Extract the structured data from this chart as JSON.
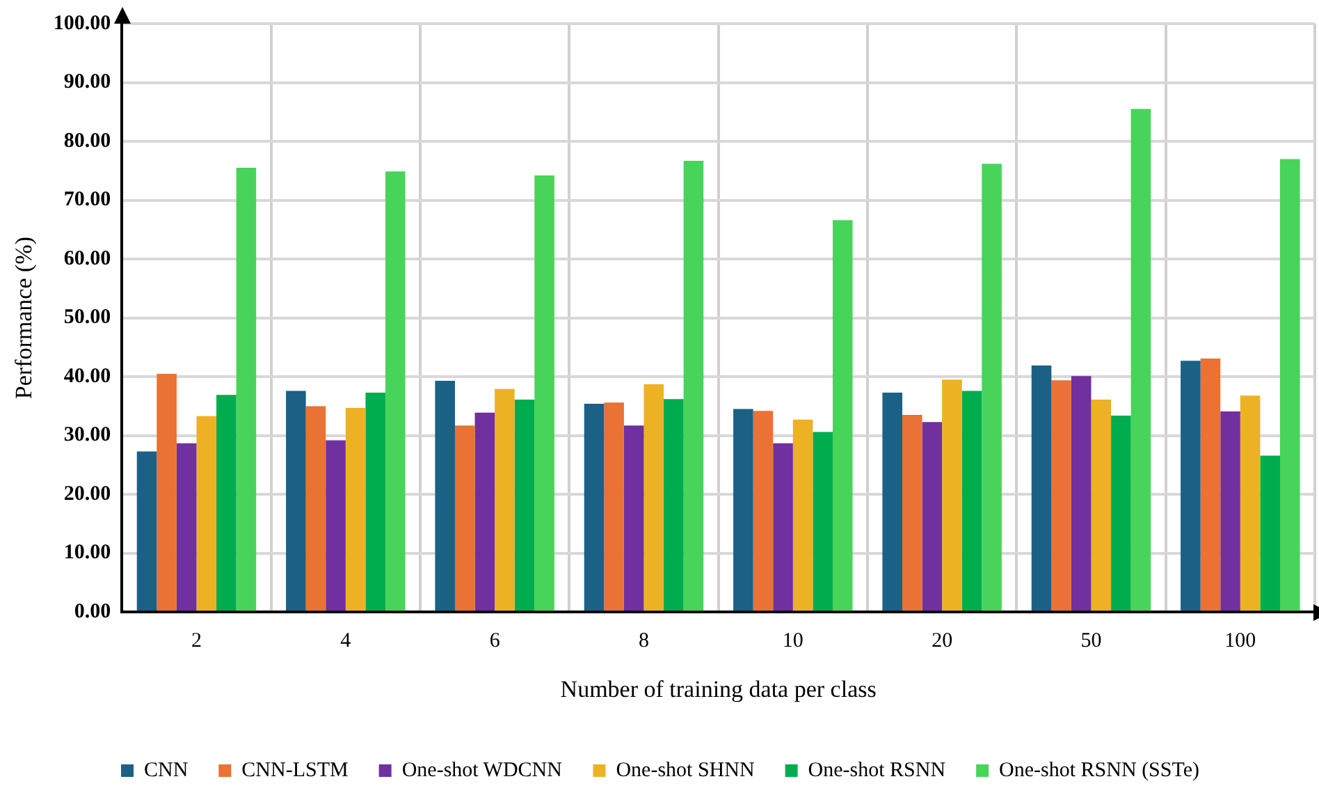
{
  "chart_data": {
    "type": "bar",
    "xlabel": "Number of training data per class",
    "ylabel": "Performance (%)",
    "categories": [
      "2",
      "4",
      "6",
      "8",
      "10",
      "20",
      "50",
      "100"
    ],
    "series": [
      {
        "name": "CNN",
        "color": "#1a6185",
        "values": [
          27.3,
          37.6,
          39.3,
          35.4,
          34.5,
          37.3,
          41.9,
          42.7
        ]
      },
      {
        "name": "CNN-LSTM",
        "color": "#e97234",
        "values": [
          40.5,
          35.0,
          31.7,
          35.6,
          34.2,
          33.5,
          39.4,
          43.1
        ]
      },
      {
        "name": "One-shot WDCNN",
        "color": "#7030a0",
        "values": [
          28.7,
          29.2,
          33.9,
          31.7,
          28.7,
          32.3,
          40.1,
          34.1
        ]
      },
      {
        "name": "One-shot SHNN",
        "color": "#edb223",
        "values": [
          33.3,
          34.7,
          37.9,
          38.7,
          32.7,
          39.5,
          36.1,
          36.8
        ]
      },
      {
        "name": "One-shot RSNN",
        "color": "#00ad4e",
        "values": [
          36.9,
          37.3,
          36.1,
          36.2,
          30.6,
          37.6,
          33.4,
          26.6
        ]
      },
      {
        "name": "One-shot RSNN (SSTe)",
        "color": "#48d45a",
        "values": [
          75.5,
          74.9,
          74.2,
          76.7,
          66.6,
          76.2,
          85.5,
          77.0
        ]
      }
    ],
    "ylim": [
      0,
      100
    ],
    "yticks": [
      {
        "value": 0,
        "label": "0.00"
      },
      {
        "value": 10,
        "label": "10.00"
      },
      {
        "value": 20,
        "label": "20.00"
      },
      {
        "value": 30,
        "label": "30.00"
      },
      {
        "value": 40,
        "label": "40.00"
      },
      {
        "value": 50,
        "label": "50.00"
      },
      {
        "value": 60,
        "label": "60.00"
      },
      {
        "value": 70,
        "label": "70.00"
      },
      {
        "value": 80,
        "label": "80.00"
      },
      {
        "value": 90,
        "label": "90.00"
      },
      {
        "value": 100,
        "label": "100.00"
      }
    ],
    "grid": true,
    "legend": "bottom"
  }
}
